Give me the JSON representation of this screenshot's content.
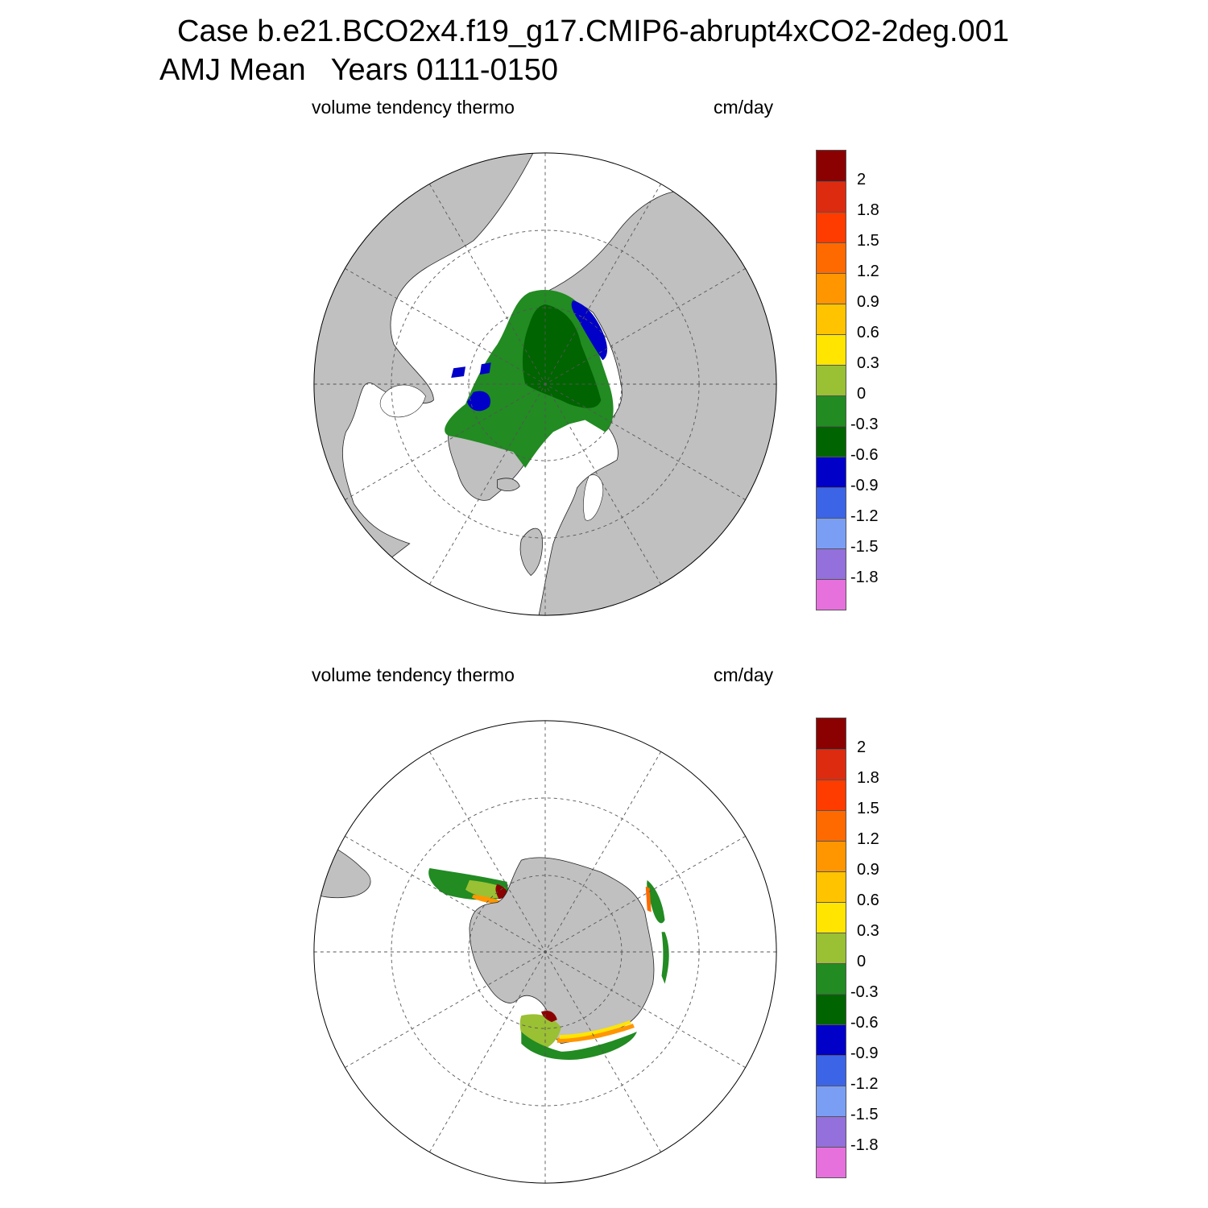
{
  "header": {
    "line1": "Case b.e21.BCO2x4.f19_g17.CMIP6-abrupt4xCO2-2deg.001",
    "line2": "AMJ Mean   Years 0111-0150"
  },
  "panels": [
    {
      "id": "north",
      "variable": "volume tendency thermo",
      "units": "cm/day"
    },
    {
      "id": "south",
      "variable": "volume tendency thermo",
      "units": "cm/day"
    }
  ],
  "colorbar": {
    "labels": [
      "2",
      "1.8",
      "1.5",
      "1.2",
      "0.9",
      "0.6",
      "0.3",
      "0",
      "-0.3",
      "-0.6",
      "-0.9",
      "-1.2",
      "-1.5",
      "-1.8"
    ],
    "colors": [
      "#8b0000",
      "#dd2b10",
      "#ff3c00",
      "#ff6a00",
      "#ff9600",
      "#ffc300",
      "#ffe500",
      "#9ac034",
      "#228b22",
      "#006400",
      "#0000c8",
      "#3c64e6",
      "#7b9ef5",
      "#9370db",
      "#e671dd"
    ]
  },
  "map_colors": {
    "land": "#c0c0c0",
    "ocean": "#ffffff",
    "grid": "#555555"
  }
}
